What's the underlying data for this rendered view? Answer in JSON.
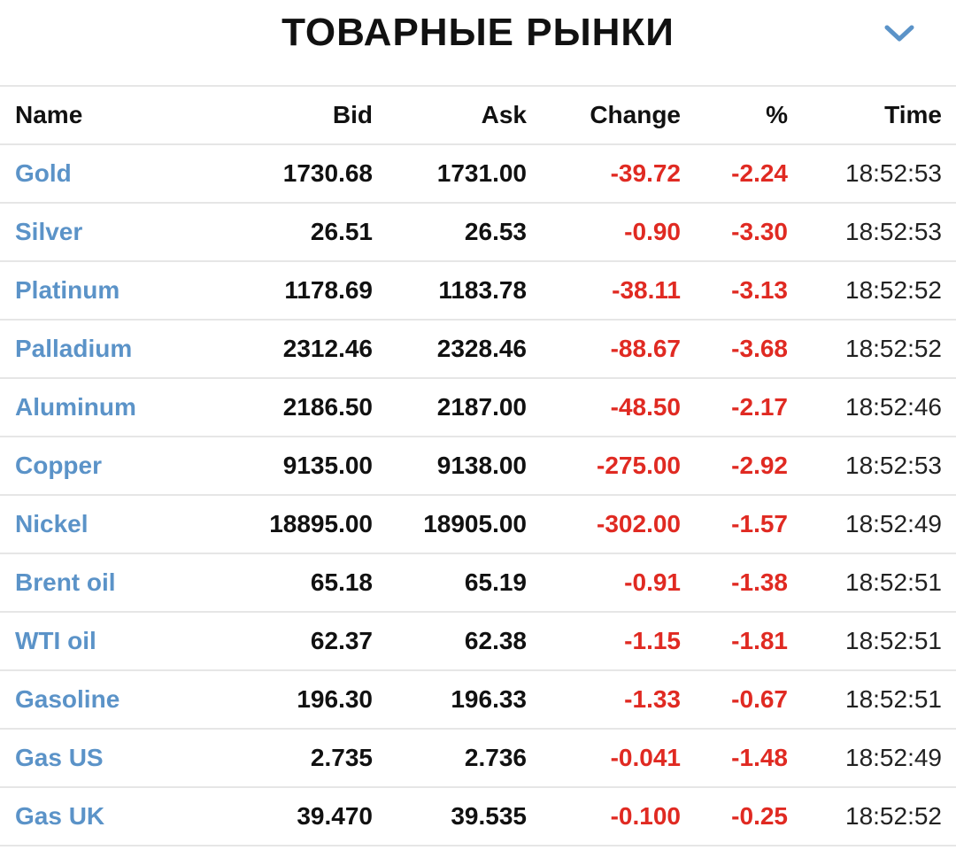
{
  "header": {
    "title": "ТОВАРНЫЕ РЫНКИ"
  },
  "colors": {
    "name_link": "#5b93c8",
    "negative": "#e02a22",
    "chevron": "#5b93c8",
    "divider": "#e6e6e6"
  },
  "table": {
    "columns": [
      "Name",
      "Bid",
      "Ask",
      "Change",
      "%",
      "Time"
    ],
    "rows": [
      {
        "name": "Gold",
        "bid": "1730.68",
        "ask": "1731.00",
        "change": "-39.72",
        "pct": "-2.24",
        "time": "18:52:53"
      },
      {
        "name": "Silver",
        "bid": "26.51",
        "ask": "26.53",
        "change": "-0.90",
        "pct": "-3.30",
        "time": "18:52:53"
      },
      {
        "name": "Platinum",
        "bid": "1178.69",
        "ask": "1183.78",
        "change": "-38.11",
        "pct": "-3.13",
        "time": "18:52:52"
      },
      {
        "name": "Palladium",
        "bid": "2312.46",
        "ask": "2328.46",
        "change": "-88.67",
        "pct": "-3.68",
        "time": "18:52:52"
      },
      {
        "name": "Aluminum",
        "bid": "2186.50",
        "ask": "2187.00",
        "change": "-48.50",
        "pct": "-2.17",
        "time": "18:52:46"
      },
      {
        "name": "Copper",
        "bid": "9135.00",
        "ask": "9138.00",
        "change": "-275.00",
        "pct": "-2.92",
        "time": "18:52:53"
      },
      {
        "name": "Nickel",
        "bid": "18895.00",
        "ask": "18905.00",
        "change": "-302.00",
        "pct": "-1.57",
        "time": "18:52:49"
      },
      {
        "name": "Brent oil",
        "bid": "65.18",
        "ask": "65.19",
        "change": "-0.91",
        "pct": "-1.38",
        "time": "18:52:51"
      },
      {
        "name": "WTI oil",
        "bid": "62.37",
        "ask": "62.38",
        "change": "-1.15",
        "pct": "-1.81",
        "time": "18:52:51"
      },
      {
        "name": "Gasoline",
        "bid": "196.30",
        "ask": "196.33",
        "change": "-1.33",
        "pct": "-0.67",
        "time": "18:52:51"
      },
      {
        "name": "Gas US",
        "bid": "2.735",
        "ask": "2.736",
        "change": "-0.041",
        "pct": "-1.48",
        "time": "18:52:49"
      },
      {
        "name": "Gas UK",
        "bid": "39.470",
        "ask": "39.535",
        "change": "-0.100",
        "pct": "-0.25",
        "time": "18:52:52"
      }
    ]
  }
}
